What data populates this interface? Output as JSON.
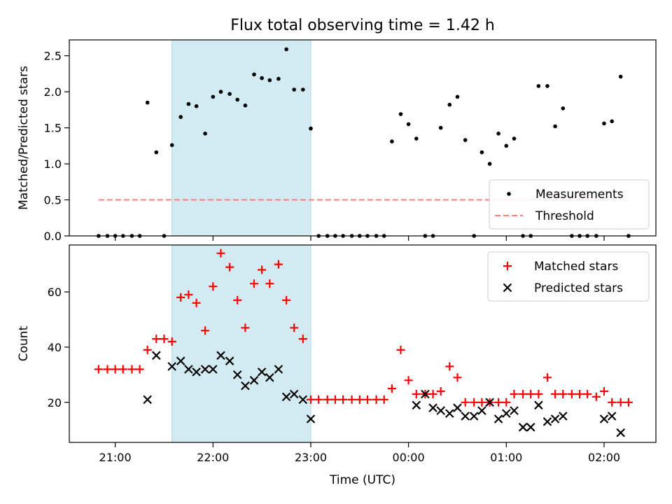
{
  "figure": {
    "title": "Flux total observing time = 1.42 h"
  },
  "chart_data": [
    {
      "type": "scatter",
      "panel": "top",
      "title": "Flux total observing time = 1.42 h",
      "xlabel": "",
      "ylabel": "Matched/Predicted stars",
      "x_unit": "hours since 21:00 UTC (axis displays clock times)",
      "xlim": [
        -0.47,
        5.53
      ],
      "ylim": [
        0,
        2.72
      ],
      "yticks": [
        0.0,
        0.5,
        1.0,
        1.5,
        2.0,
        2.5
      ],
      "ytick_labels": [
        "0.0",
        "0.5",
        "1.0",
        "1.5",
        "2.0",
        "2.5"
      ],
      "highlight_span": [
        0.58,
        2.0
      ],
      "highlight_color": "#add8e6",
      "legend_position": "lower-right",
      "series": [
        {
          "name": "Measurements",
          "color": "#000000",
          "marker": "dot",
          "x": [
            -0.17,
            -0.08,
            0.0,
            0.08,
            0.17,
            0.25,
            0.33,
            0.42,
            0.5,
            0.58,
            0.67,
            0.75,
            0.83,
            0.92,
            1.0,
            1.08,
            1.17,
            1.25,
            1.33,
            1.42,
            1.5,
            1.58,
            1.67,
            1.75,
            1.83,
            1.92,
            2.0,
            2.08,
            2.17,
            2.25,
            2.33,
            2.42,
            2.5,
            2.58,
            2.67,
            2.75,
            2.83,
            2.92,
            3.0,
            3.08,
            3.17,
            3.25,
            3.33,
            3.42,
            3.5,
            3.58,
            3.67,
            3.75,
            3.83,
            3.92,
            4.0,
            4.08,
            4.17,
            4.25,
            4.33,
            4.42,
            4.5,
            4.58,
            4.67,
            4.75,
            4.83,
            4.92,
            5.0,
            5.08,
            5.17,
            5.25
          ],
          "y": [
            0.0,
            0.0,
            0.0,
            0.0,
            0.0,
            0.0,
            1.85,
            1.16,
            0.0,
            1.26,
            1.65,
            1.83,
            1.8,
            1.42,
            1.93,
            2.0,
            1.97,
            1.89,
            1.81,
            2.24,
            2.19,
            2.16,
            2.18,
            2.59,
            2.03,
            2.03,
            1.49,
            0.0,
            0.0,
            0.0,
            0.0,
            0.0,
            0.0,
            0.0,
            0.0,
            0.0,
            1.31,
            1.69,
            1.55,
            1.35,
            0.0,
            0.0,
            1.5,
            1.82,
            1.93,
            1.33,
            0.0,
            1.16,
            1.0,
            1.42,
            1.25,
            1.35,
            0.0,
            0.0,
            2.08,
            2.08,
            1.52,
            1.77,
            0.0,
            0.0,
            0.0,
            0.0,
            1.56,
            1.59,
            2.21,
            0.0
          ]
        },
        {
          "name": "Threshold",
          "color": "#ff7f7f",
          "style": "dashed",
          "x": [
            -0.17,
            5.25
          ],
          "y": [
            0.5,
            0.5
          ]
        }
      ]
    },
    {
      "type": "scatter",
      "panel": "bottom",
      "xlabel": "Time (UTC)",
      "ylabel": "Count",
      "x_unit": "hours since 21:00 UTC (axis displays clock times)",
      "xlim": [
        -0.47,
        5.53
      ],
      "ylim": [
        5.5,
        77
      ],
      "xticks": [
        0,
        1,
        2,
        3,
        4,
        5
      ],
      "xtick_labels": [
        "21:00",
        "22:00",
        "23:00",
        "00:00",
        "01:00",
        "02:00"
      ],
      "yticks": [
        20,
        40,
        60
      ],
      "ytick_labels": [
        "20",
        "40",
        "60"
      ],
      "highlight_span": [
        0.58,
        2.0
      ],
      "highlight_color": "#add8e6",
      "legend_position": "upper-right",
      "series": [
        {
          "name": "Matched stars",
          "color": "#ff0000",
          "marker": "plus",
          "x": [
            -0.17,
            -0.08,
            0.0,
            0.08,
            0.17,
            0.25,
            0.33,
            0.42,
            0.5,
            0.58,
            0.67,
            0.75,
            0.83,
            0.92,
            1.0,
            1.08,
            1.17,
            1.25,
            1.33,
            1.42,
            1.5,
            1.58,
            1.67,
            1.75,
            1.83,
            1.92,
            2.0,
            2.08,
            2.17,
            2.25,
            2.33,
            2.42,
            2.5,
            2.58,
            2.67,
            2.75,
            2.83,
            2.92,
            3.0,
            3.08,
            3.17,
            3.25,
            3.33,
            3.42,
            3.5,
            3.58,
            3.67,
            3.75,
            3.83,
            3.92,
            4.0,
            4.08,
            4.17,
            4.25,
            4.33,
            4.42,
            4.5,
            4.58,
            4.67,
            4.75,
            4.83,
            4.92,
            5.0,
            5.08,
            5.17,
            5.25
          ],
          "y": [
            32,
            32,
            32,
            32,
            32,
            32,
            39,
            43,
            43,
            42,
            58,
            59,
            56,
            46,
            62,
            74,
            69,
            57,
            47,
            63,
            68,
            63,
            70,
            57,
            47,
            43,
            21,
            21,
            21,
            21,
            21,
            21,
            21,
            21,
            21,
            21,
            25,
            39,
            28,
            23,
            23,
            23,
            24,
            33,
            29,
            20,
            20,
            20,
            20,
            20,
            20,
            23,
            23,
            23,
            23,
            29,
            23,
            23,
            23,
            23,
            23,
            22,
            24,
            20,
            20,
            20
          ]
        },
        {
          "name": "Predicted stars",
          "color": "#000000",
          "marker": "x",
          "x": [
            0.33,
            0.42,
            0.58,
            0.67,
            0.75,
            0.83,
            0.92,
            1.0,
            1.08,
            1.17,
            1.25,
            1.33,
            1.42,
            1.5,
            1.58,
            1.67,
            1.75,
            1.83,
            1.92,
            2.0,
            3.08,
            3.17,
            3.25,
            3.33,
            3.42,
            3.5,
            3.58,
            3.67,
            3.75,
            3.83,
            3.92,
            4.0,
            4.08,
            4.17,
            4.25,
            4.33,
            4.42,
            4.5,
            4.58,
            5.0,
            5.08,
            5.17
          ],
          "y": [
            21,
            37,
            33,
            35,
            32,
            31,
            32,
            32,
            37,
            35,
            30,
            26,
            28,
            31,
            29,
            32,
            22,
            23,
            21,
            14,
            19,
            23,
            18,
            17,
            16,
            18,
            15,
            15,
            17,
            20,
            14,
            16,
            17,
            11,
            11,
            19,
            13,
            14,
            15,
            14,
            15,
            9
          ]
        }
      ]
    }
  ]
}
